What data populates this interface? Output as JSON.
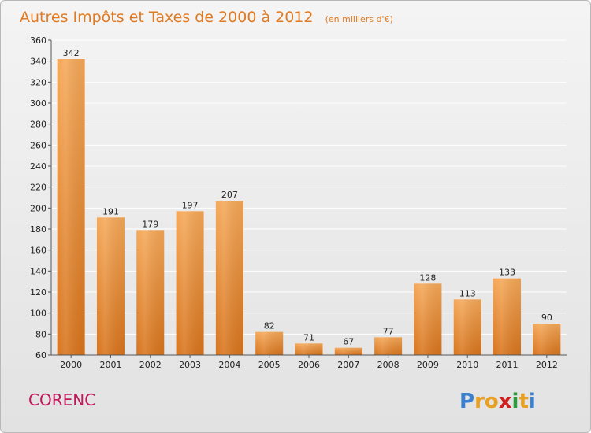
{
  "chart_data": {
    "type": "bar",
    "title": "Autres Impôts et Taxes de 2000 à 2012",
    "subtitle": "(en milliers d'€)",
    "categories": [
      "2000",
      "2001",
      "2002",
      "2003",
      "2004",
      "2005",
      "2006",
      "2007",
      "2008",
      "2009",
      "2010",
      "2011",
      "2012"
    ],
    "values": [
      342,
      191,
      179,
      197,
      207,
      82,
      71,
      67,
      77,
      128,
      113,
      133,
      90
    ],
    "ylim": [
      60,
      360
    ],
    "yticks": [
      60,
      80,
      100,
      120,
      140,
      160,
      180,
      200,
      220,
      240,
      260,
      280,
      300,
      320,
      340,
      360
    ],
    "grid": true,
    "bar_color": "#f0a050"
  },
  "commune": "CORENC",
  "logo": {
    "letters": [
      "P",
      "r",
      "o",
      "x",
      "i",
      "t",
      "i"
    ],
    "colors": [
      "#3a7fd0",
      "#e8a020",
      "#e8a020",
      "#d02020",
      "#2a9a3a",
      "#e8a020",
      "#3a7fd0"
    ]
  }
}
